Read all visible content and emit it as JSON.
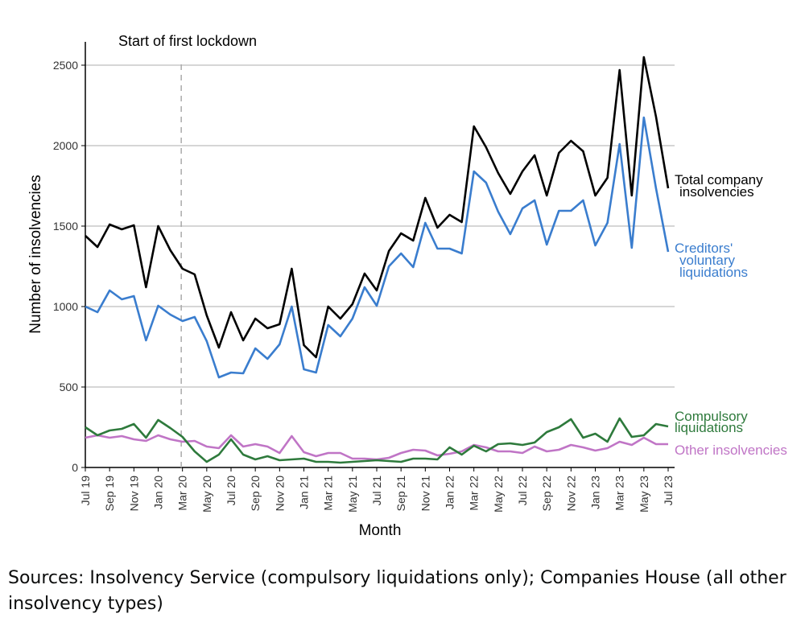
{
  "chart_data": {
    "type": "line",
    "xlabel": "Month",
    "ylabel": "Number of insolvencies",
    "ylim": [
      0,
      2600
    ],
    "yticks": [
      0,
      500,
      1000,
      1500,
      2000,
      2500
    ],
    "grid": true,
    "x": [
      "Jul 19",
      "Aug 19",
      "Sep 19",
      "Oct 19",
      "Nov 19",
      "Dec 19",
      "Jan 20",
      "Feb 20",
      "Mar 20",
      "Apr 20",
      "May 20",
      "Jun 20",
      "Jul 20",
      "Aug 20",
      "Sep 20",
      "Oct 20",
      "Nov 20",
      "Dec 20",
      "Jan 21",
      "Feb 21",
      "Mar 21",
      "Apr 21",
      "May 21",
      "Jun 21",
      "Jul 21",
      "Aug 21",
      "Sep 21",
      "Oct 21",
      "Nov 21",
      "Dec 21",
      "Jan 22",
      "Feb 22",
      "Mar 22",
      "Apr 22",
      "May 22",
      "Jun 22",
      "Jul 22",
      "Aug 22",
      "Sep 22",
      "Oct 22",
      "Nov 22",
      "Dec 22",
      "Jan 23",
      "Feb 23",
      "Mar 23",
      "Apr 23",
      "May 23",
      "Jun 23",
      "Jul 23"
    ],
    "xtick_labels": [
      "Jul 19",
      "Sep 19",
      "Nov 19",
      "Jan 20",
      "Mar 20",
      "May 20",
      "Jul 20",
      "Sep 20",
      "Nov 20",
      "Jan 21",
      "Mar 21",
      "May 21",
      "Jul 21",
      "Sep 21",
      "Nov 21",
      "Jan 22",
      "Mar 22",
      "May 22",
      "Jul 22",
      "Sep 22",
      "Nov 22",
      "Jan 23",
      "Mar 23",
      "May 23",
      "Jul 23"
    ],
    "annotation": {
      "text": "Start of first lockdown",
      "x_month_index": 7.9
    },
    "series": [
      {
        "name": "Total company insolvencies",
        "label_lines": [
          "Total company",
          "insolvencies"
        ],
        "color": "#000000",
        "values": [
          1440,
          1370,
          1510,
          1480,
          1505,
          1120,
          1500,
          1350,
          1235,
          1200,
          945,
          745,
          965,
          790,
          925,
          865,
          890,
          1235,
          760,
          685,
          1000,
          925,
          1015,
          1205,
          1100,
          1345,
          1455,
          1410,
          1675,
          1490,
          1570,
          1525,
          2120,
          1990,
          1830,
          1700,
          1840,
          1940,
          1690,
          1955,
          2030,
          1965,
          1690,
          1800,
          2470,
          1690,
          2550,
          2180,
          1735
        ]
      },
      {
        "name": "Creditors' voluntary liquidations",
        "label_lines": [
          "Creditors'",
          "voluntary",
          "liquidations"
        ],
        "color": "#3a7dce",
        "values": [
          1000,
          965,
          1100,
          1045,
          1065,
          790,
          1005,
          950,
          910,
          935,
          785,
          560,
          590,
          585,
          740,
          675,
          765,
          1000,
          610,
          590,
          885,
          815,
          925,
          1120,
          1005,
          1250,
          1330,
          1245,
          1520,
          1360,
          1360,
          1330,
          1840,
          1770,
          1590,
          1450,
          1610,
          1660,
          1385,
          1595,
          1595,
          1660,
          1380,
          1520,
          2010,
          1365,
          2175,
          1735,
          1340
        ]
      },
      {
        "name": "Compulsory liquidations",
        "label_lines": [
          "Compulsory",
          "liquidations"
        ],
        "color": "#2e7a3c",
        "values": [
          250,
          200,
          230,
          240,
          270,
          185,
          295,
          245,
          190,
          100,
          35,
          80,
          175,
          80,
          50,
          70,
          45,
          50,
          55,
          35,
          35,
          30,
          35,
          40,
          45,
          40,
          35,
          55,
          55,
          50,
          125,
          80,
          135,
          100,
          145,
          150,
          140,
          155,
          220,
          250,
          300,
          185,
          210,
          160,
          305,
          190,
          200,
          270,
          255
        ]
      },
      {
        "name": "Other insolvencies",
        "label_lines": [
          "Other insolvencies"
        ],
        "color": "#c075c6",
        "values": [
          185,
          200,
          185,
          195,
          175,
          165,
          200,
          175,
          160,
          165,
          130,
          120,
          200,
          130,
          145,
          130,
          90,
          195,
          95,
          70,
          90,
          90,
          55,
          55,
          50,
          60,
          90,
          110,
          105,
          75,
          85,
          100,
          140,
          125,
          100,
          100,
          90,
          130,
          100,
          110,
          140,
          125,
          105,
          120,
          160,
          140,
          185,
          145,
          145
        ]
      }
    ]
  },
  "source_note": "Sources: Insolvency Service (compulsory liquidations only); Companies House (all other insolvency types)"
}
